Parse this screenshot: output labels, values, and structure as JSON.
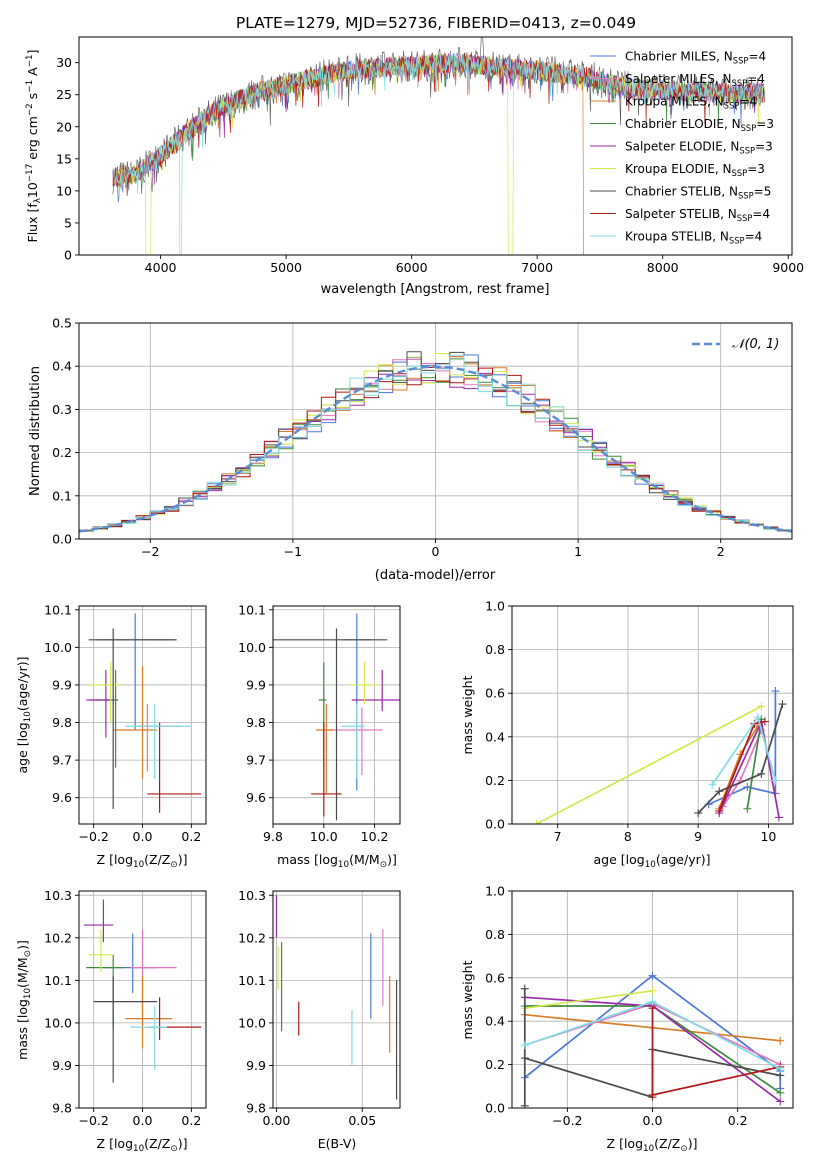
{
  "figure": {
    "title": "PLATE=1279, MJD=52736, FIBERID=0413, z=0.049"
  },
  "series_styles": [
    {
      "name": "Chabrier MILES",
      "nssp": "4",
      "color": "#4c78d8"
    },
    {
      "name": "Salpeter MILES",
      "nssp": "4",
      "color": "#e377c2"
    },
    {
      "name": "Kroupa MILES",
      "nssp": "4",
      "color": "#d87c26"
    },
    {
      "name": "Chabrier ELODIE",
      "nssp": "3",
      "color": "#3d8a3d"
    },
    {
      "name": "Salpeter ELODIE",
      "nssp": "3",
      "color": "#9b2aa8"
    },
    {
      "name": "Kroupa ELODIE",
      "nssp": "3",
      "color": "#d2e84a"
    },
    {
      "name": "Chabrier STELIB",
      "nssp": "5",
      "color": "#4a4a4a"
    },
    {
      "name": "Salpeter STELIB",
      "nssp": "4",
      "color": "#b01616"
    },
    {
      "name": "Kroupa STELIB",
      "nssp": "4",
      "color": "#7fdde6"
    }
  ],
  "chart_data": [
    {
      "id": "spectrum",
      "type": "line",
      "xlabel": "wavelength [Angstrom, rest frame]",
      "ylabel_main": "Flux [f",
      "ylabel_sub": "λ",
      "ylabel_mid": "10",
      "ylabel_sup": "−17",
      "ylabel_end": " erg cm",
      "ylabel_sup2": "−2",
      "ylabel_end2": " s",
      "ylabel_sup3": "−1",
      "ylabel_end3": " A",
      "ylabel_sup4": "−1",
      "ylabel_close": "]",
      "xlim": [
        3350,
        9030
      ],
      "ylim": [
        0,
        34
      ],
      "xticks": [
        4000,
        5000,
        6000,
        7000,
        8000,
        9000
      ],
      "yticks": [
        0,
        5,
        10,
        15,
        20,
        25,
        30
      ],
      "legend_placement": "right",
      "continuum_x": [
        3600,
        3800,
        4000,
        4200,
        4400,
        4600,
        4800,
        5000,
        5200,
        5400,
        5600,
        5800,
        6000,
        6200,
        6400,
        6600,
        6800,
        7000,
        7200,
        7400,
        7600,
        7800,
        8000,
        8200,
        8400,
        8600,
        8800
      ],
      "continuum_y": [
        12,
        12.5,
        15.5,
        19,
        22,
        24,
        25.5,
        26.5,
        27.5,
        28.5,
        29,
        29.3,
        29.5,
        29.8,
        30,
        29.5,
        29,
        28.8,
        28.3,
        27.8,
        26.5,
        26,
        25.7,
        25.5,
        25.3,
        25.2,
        25.2
      ],
      "drops": [
        {
          "series": "Kroupa ELODIE",
          "from": 3880,
          "to": 3920
        },
        {
          "series": "Kroupa STELIB",
          "from": 4150,
          "to": 4170
        },
        {
          "series": "Kroupa ELODIE",
          "from": 6770,
          "to": 6810
        },
        {
          "series": "Kroupa MILES",
          "from": 7370,
          "to": 7450
        }
      ],
      "spike": {
        "series": "Chabrier STELIB",
        "x": 6560,
        "y": 34
      }
    },
    {
      "id": "residuals",
      "type": "histogram",
      "xlabel": "(data-model)/error",
      "ylabel": "Normed distribution",
      "xlim": [
        -2.5,
        2.5
      ],
      "ylim": [
        0,
        0.5
      ],
      "xticks": [
        -2,
        -1,
        0,
        1,
        2
      ],
      "yticks": [
        0.0,
        0.1,
        0.2,
        0.3,
        0.4,
        0.5
      ],
      "grid": true,
      "bin_width": 0.1,
      "reference_label": "𝒩(0, 1)",
      "reference_color": "#5b8dd6",
      "legend_placement": "top-right"
    },
    {
      "id": "age_vs_Z",
      "type": "errorbar",
      "xlabel": "Z [log",
      "xlabel_sub": "10",
      "xlabel_end": "(Z/Z",
      "xlabel_sub2": "⊙",
      "xlabel_close": ")]",
      "ylabel": "age  [log",
      "ylabel_sub": "10",
      "ylabel_end": "(age/yr)]",
      "xlim": [
        -0.26,
        0.26
      ],
      "ylim": [
        9.53,
        10.11
      ],
      "xticks": [
        -0.2,
        0.0,
        0.2
      ],
      "yticks": [
        9.6,
        9.7,
        9.8,
        9.9,
        10.0,
        10.1
      ],
      "grid": true,
      "points": [
        {
          "series": "Chabrier MILES",
          "x": -0.03,
          "y": 10.02,
          "xerr": [
            0.16,
            0.16
          ],
          "yerr": [
            0.24,
            0.07
          ]
        },
        {
          "series": "Salpeter MILES",
          "x": 0.02,
          "y": 9.79,
          "xerr": [
            0.04,
            0.14
          ],
          "yerr": [
            0.12,
            0.06
          ]
        },
        {
          "series": "Kroupa MILES",
          "x": 0.0,
          "y": 9.78,
          "xerr": [
            0.12,
            0.06
          ],
          "yerr": [
            0.13,
            0.17
          ]
        },
        {
          "series": "Chabrier ELODIE",
          "x": -0.11,
          "y": 9.86,
          "xerr": [
            0.1,
            0.01
          ],
          "yerr": [
            0.18,
            0.08
          ]
        },
        {
          "series": "Salpeter ELODIE",
          "x": -0.15,
          "y": 9.86,
          "xerr": [
            0.08,
            0.03
          ],
          "yerr": [
            0.1,
            0.08
          ]
        },
        {
          "series": "Kroupa ELODIE",
          "x": -0.13,
          "y": 9.9,
          "xerr": [
            0.09,
            0.04
          ],
          "yerr": [
            0.1,
            0.06
          ]
        },
        {
          "series": "Chabrier STELIB",
          "x": -0.12,
          "y": 10.02,
          "xerr": [
            0.1,
            0.26
          ],
          "yerr": [
            0.45,
            0.03
          ]
        },
        {
          "series": "Salpeter STELIB",
          "x": 0.07,
          "y": 9.61,
          "xerr": [
            0.05,
            0.17
          ],
          "yerr": [
            0.05,
            0.19
          ]
        },
        {
          "series": "Kroupa STELIB",
          "x": 0.05,
          "y": 9.79,
          "xerr": [
            0.12,
            0.15
          ],
          "yerr": [
            0.14,
            0.06
          ]
        }
      ]
    },
    {
      "id": "age_vs_mass",
      "type": "errorbar",
      "xlabel": "mass [log",
      "xlabel_sub": "10",
      "xlabel_end": "(M/M",
      "xlabel_sub2": "⊙",
      "xlabel_close": ")]",
      "xlim": [
        9.8,
        10.3
      ],
      "ylim": [
        9.53,
        10.11
      ],
      "xticks": [
        9.8,
        10.0,
        10.2
      ],
      "yticks": [
        9.6,
        9.7,
        9.8,
        9.9,
        10.0,
        10.1
      ],
      "grid": true,
      "points": [
        {
          "series": "Chabrier MILES",
          "x": 10.13,
          "y": 10.02,
          "xerr": [
            0.06,
            0.06
          ],
          "yerr": [
            0.4,
            0.07
          ]
        },
        {
          "series": "Salpeter MILES",
          "x": 10.15,
          "y": 9.78,
          "xerr": [
            0.14,
            0.08
          ],
          "yerr": [
            0.12,
            0.06
          ]
        },
        {
          "series": "Kroupa MILES",
          "x": 10.01,
          "y": 9.78,
          "xerr": [
            0.04,
            0.03
          ],
          "yerr": [
            0.17,
            0.07
          ]
        },
        {
          "series": "Chabrier ELODIE",
          "x": 10.0,
          "y": 9.86,
          "xerr": [
            0.02,
            0.01
          ],
          "yerr": [
            0.18,
            0.1
          ]
        },
        {
          "series": "Salpeter ELODIE",
          "x": 10.23,
          "y": 9.86,
          "xerr": [
            0.12,
            0.08
          ],
          "yerr": [
            0.03,
            0.08
          ]
        },
        {
          "series": "Kroupa ELODIE",
          "x": 10.16,
          "y": 9.9,
          "xerr": [
            0.06,
            0.06
          ],
          "yerr": [
            0.05,
            0.06
          ]
        },
        {
          "series": "Chabrier STELIB",
          "x": 10.05,
          "y": 10.02,
          "xerr": [
            0.25,
            0.2
          ],
          "yerr": [
            0.48,
            0.03
          ]
        },
        {
          "series": "Salpeter STELIB",
          "x": 10.0,
          "y": 9.61,
          "xerr": [
            0.05,
            0.07
          ],
          "yerr": [
            0.06,
            0.19
          ]
        },
        {
          "series": "Kroupa STELIB",
          "x": 10.13,
          "y": 9.79,
          "xerr": [
            0.06,
            0.03
          ],
          "yerr": [
            0.14,
            0.06
          ]
        }
      ]
    },
    {
      "id": "weight_vs_age",
      "type": "line",
      "xlabel": "age  [log",
      "xlabel_sub": "10",
      "xlabel_end": "(age/yr)]",
      "ylabel": "mass weight",
      "xlim": [
        6.35,
        10.35
      ],
      "ylim": [
        0,
        1.0
      ],
      "xticks": [
        7,
        8,
        9,
        10
      ],
      "yticks": [
        0.0,
        0.2,
        0.4,
        0.6,
        0.8,
        1.0
      ],
      "grid": true,
      "series": [
        {
          "series": "Chabrier MILES",
          "x": [
            9.15,
            9.7,
            10.1,
            10.1
          ],
          "y": [
            0.09,
            0.17,
            0.14,
            0.61
          ]
        },
        {
          "series": "Kroupa MILES",
          "x": [
            9.3,
            9.6,
            9.85
          ],
          "y": [
            0.07,
            0.32,
            0.45
          ]
        },
        {
          "series": "Salpeter MILES",
          "x": [
            9.35,
            9.6,
            9.9
          ],
          "y": [
            0.08,
            0.2,
            0.43
          ]
        },
        {
          "series": "Chabrier ELODIE",
          "x": [
            9.7,
            9.9
          ],
          "y": [
            0.07,
            0.48
          ]
        },
        {
          "series": "Salpeter ELODIE",
          "x": [
            9.3,
            9.9,
            10.15
          ],
          "y": [
            0.05,
            0.47,
            0.03
          ]
        },
        {
          "series": "Kroupa ELODIE",
          "x": [
            6.7,
            9.9
          ],
          "y": [
            0.0,
            0.54
          ]
        },
        {
          "series": "Chabrier STELIB",
          "x": [
            9.0,
            9.3,
            9.9,
            10.2
          ],
          "y": [
            0.05,
            0.15,
            0.23,
            0.55
          ]
        },
        {
          "series": "Salpeter STELIB",
          "x": [
            9.3,
            9.8,
            9.95
          ],
          "y": [
            0.06,
            0.46,
            0.47
          ]
        },
        {
          "series": "Kroupa STELIB",
          "x": [
            9.2,
            9.85,
            10.1
          ],
          "y": [
            0.18,
            0.49,
            0.2
          ]
        }
      ]
    },
    {
      "id": "mass_vs_Z",
      "type": "errorbar",
      "xlabel": "Z [log",
      "xlabel_sub": "10",
      "xlabel_end": "(Z/Z",
      "xlabel_sub2": "⊙",
      "xlabel_close": ")]",
      "ylabel": "mass [log",
      "ylabel_sub": "10",
      "ylabel_end": "(M/M",
      "ylabel_sub2": "⊙",
      "ylabel_close": ")]",
      "xlim": [
        -0.26,
        0.26
      ],
      "ylim": [
        9.8,
        10.31
      ],
      "xticks": [
        -0.2,
        0.0,
        0.2
      ],
      "yticks": [
        9.8,
        9.9,
        10.0,
        10.1,
        10.2,
        10.3
      ],
      "grid": true,
      "points": [
        {
          "series": "Chabrier MILES",
          "x": -0.04,
          "y": 10.13,
          "xerr": [
            0.12,
            0.1
          ],
          "yerr": [
            0.06,
            0.08
          ]
        },
        {
          "series": "Salpeter MILES",
          "x": 0.0,
          "y": 10.13,
          "xerr": [
            0.05,
            0.14
          ],
          "yerr": [
            0.15,
            0.09
          ]
        },
        {
          "series": "Kroupa MILES",
          "x": 0.0,
          "y": 10.01,
          "xerr": [
            0.07,
            0.12
          ],
          "yerr": [
            0.07,
            0.1
          ]
        },
        {
          "series": "Chabrier ELODIE",
          "x": -0.12,
          "y": 10.13,
          "xerr": [
            0.11,
            0.04
          ],
          "yerr": [
            0.14,
            0.03
          ]
        },
        {
          "series": "Salpeter ELODIE",
          "x": -0.16,
          "y": 10.23,
          "xerr": [
            0.08,
            0.04
          ],
          "yerr": [
            0.04,
            0.06
          ]
        },
        {
          "series": "Kroupa ELODIE",
          "x": -0.17,
          "y": 10.16,
          "xerr": [
            0.05,
            0.05
          ],
          "yerr": [
            0.04,
            0.06
          ]
        },
        {
          "series": "Chabrier STELIB",
          "x": -0.12,
          "y": 10.05,
          "xerr": [
            0.08,
            0.18
          ],
          "yerr": [
            0.19,
            0.06
          ]
        },
        {
          "series": "Salpeter STELIB",
          "x": 0.07,
          "y": 9.99,
          "xerr": [
            0.05,
            0.17
          ],
          "yerr": [
            0.03,
            0.07
          ]
        },
        {
          "series": "Kroupa STELIB",
          "x": 0.05,
          "y": 9.99,
          "xerr": [
            0.1,
            0.05
          ],
          "yerr": [
            0.1,
            0.05
          ]
        }
      ]
    },
    {
      "id": "mass_vs_EBV",
      "type": "errorbar",
      "xlabel": "E(B-V)",
      "xlim": [
        -0.002,
        0.072
      ],
      "ylim": [
        9.8,
        10.31
      ],
      "xticks": [
        0.0,
        0.05
      ],
      "yticks": [
        9.8,
        9.9,
        10.0,
        10.1,
        10.2,
        10.3
      ],
      "grid": true,
      "points": [
        {
          "series": "Chabrier MILES",
          "x": 0.055,
          "y": 10.12,
          "xerr": [
            0,
            0
          ],
          "yerr": [
            0.11,
            0.09
          ]
        },
        {
          "series": "Salpeter MILES",
          "x": 0.062,
          "y": 10.13,
          "xerr": [
            0,
            0
          ],
          "yerr": [
            0.09,
            0.09
          ]
        },
        {
          "series": "Kroupa MILES",
          "x": 0.066,
          "y": 10.01,
          "xerr": [
            0,
            0
          ],
          "yerr": [
            0.08,
            0.1
          ]
        },
        {
          "series": "Chabrier ELODIE",
          "x": 0.003,
          "y": 10.09,
          "xerr": [
            0,
            0
          ],
          "yerr": [
            0.11,
            0.1
          ]
        },
        {
          "series": "Salpeter ELODIE",
          "x": 0.0,
          "y": 10.25,
          "xerr": [
            0,
            0
          ],
          "yerr": [
            0.05,
            0.05
          ]
        },
        {
          "series": "Kroupa ELODIE",
          "x": 0.001,
          "y": 10.12,
          "xerr": [
            0,
            0
          ],
          "yerr": [
            0.04,
            0.06
          ]
        },
        {
          "series": "Chabrier STELIB",
          "x": 0.07,
          "y": 10.0,
          "xerr": [
            0,
            0
          ],
          "yerr": [
            0.18,
            0.1
          ]
        },
        {
          "series": "Salpeter STELIB",
          "x": 0.013,
          "y": 10.0,
          "xerr": [
            0,
            0
          ],
          "yerr": [
            0.03,
            0.05
          ]
        },
        {
          "series": "Kroupa STELIB",
          "x": 0.044,
          "y": 9.96,
          "xerr": [
            0,
            0
          ],
          "yerr": [
            0.06,
            0.07
          ]
        }
      ]
    },
    {
      "id": "weight_vs_Z",
      "type": "line",
      "xlabel": "Z [log",
      "xlabel_sub": "10",
      "xlabel_end": "(Z/Z",
      "xlabel_sub2": "⊙",
      "xlabel_close": ")]",
      "ylabel": "mass weight",
      "xlim": [
        -0.33,
        0.33
      ],
      "ylim": [
        0,
        1.0
      ],
      "xticks": [
        -0.2,
        0.0,
        0.2
      ],
      "yticks": [
        0.0,
        0.2,
        0.4,
        0.6,
        0.8,
        1.0
      ],
      "grid": true,
      "series": [
        {
          "series": "Chabrier MILES",
          "x": [
            -0.3,
            0.0,
            0.3,
            0.3
          ],
          "y": [
            0.14,
            0.61,
            0.17,
            0.09
          ]
        },
        {
          "series": "Kroupa MILES",
          "x": [
            -0.3,
            0.0,
            0.3
          ],
          "y": [
            0.43,
            0.37,
            0.31
          ]
        },
        {
          "series": "Salpeter MILES",
          "x": [
            -0.3,
            0.0,
            0.3
          ],
          "y": [
            0.29,
            0.48,
            0.2
          ]
        },
        {
          "series": "Chabrier ELODIE",
          "x": [
            -0.3,
            0.0,
            0.3
          ],
          "y": [
            0.47,
            0.47,
            0.07
          ]
        },
        {
          "series": "Salpeter ELODIE",
          "x": [
            -0.3,
            0.0,
            0.3
          ],
          "y": [
            0.51,
            0.47,
            0.03
          ]
        },
        {
          "series": "Kroupa ELODIE",
          "x": [
            -0.3,
            0.0
          ],
          "y": [
            0.46,
            0.54
          ]
        },
        {
          "series": "Chabrier STELIB",
          "x": [
            -0.3,
            -0.3,
            -0.3,
            0.0,
            0.0,
            0.3
          ],
          "y": [
            0.01,
            0.55,
            0.23,
            0.05,
            0.27,
            0.15
          ]
        },
        {
          "series": "Salpeter STELIB",
          "x": [
            0.0,
            0.0,
            0.3
          ],
          "y": [
            0.46,
            0.06,
            0.19
          ]
        },
        {
          "series": "Kroupa STELIB",
          "x": [
            -0.3,
            0.0,
            0.3
          ],
          "y": [
            0.29,
            0.49,
            0.18
          ]
        }
      ]
    }
  ]
}
